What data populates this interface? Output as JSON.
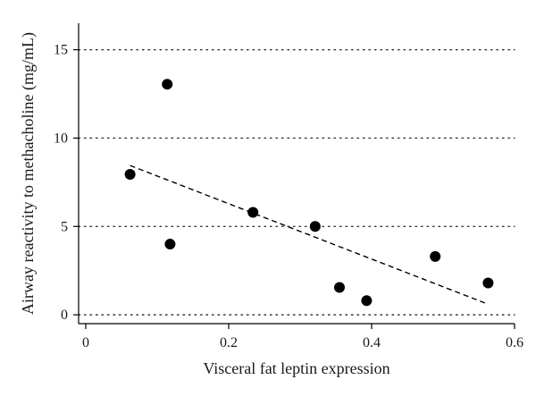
{
  "chart_data": {
    "type": "scatter",
    "title": "",
    "xlabel": "Visceral fat leptin expression",
    "ylabel": "Airway reactivity to methacholine (mg/mL)",
    "xlim": [
      -0.01,
      0.6
    ],
    "ylim": [
      -0.5,
      16.5
    ],
    "xticks": [
      0,
      0.2,
      0.4,
      0.6
    ],
    "xtick_labels": [
      "0",
      "0.2",
      "0.4",
      "0.6"
    ],
    "yticks": [
      0,
      5,
      10,
      15
    ],
    "ytick_labels": [
      "0",
      "5",
      "10",
      "15"
    ],
    "grid": "horizontal dotted",
    "legend": "none",
    "series": [
      {
        "points": [
          {
            "x": 0.062,
            "y": 7.95
          },
          {
            "x": 0.114,
            "y": 13.05
          },
          {
            "x": 0.118,
            "y": 4.0
          },
          {
            "x": 0.234,
            "y": 5.8
          },
          {
            "x": 0.321,
            "y": 5.0
          },
          {
            "x": 0.355,
            "y": 1.55
          },
          {
            "x": 0.393,
            "y": 0.8
          },
          {
            "x": 0.489,
            "y": 3.3
          },
          {
            "x": 0.563,
            "y": 1.8
          }
        ],
        "marker_color": "#000000"
      }
    ],
    "trendline": {
      "style": "dashed",
      "x": [
        0.062,
        0.563
      ],
      "y": [
        8.45,
        0.6
      ],
      "color": "#000000"
    }
  }
}
